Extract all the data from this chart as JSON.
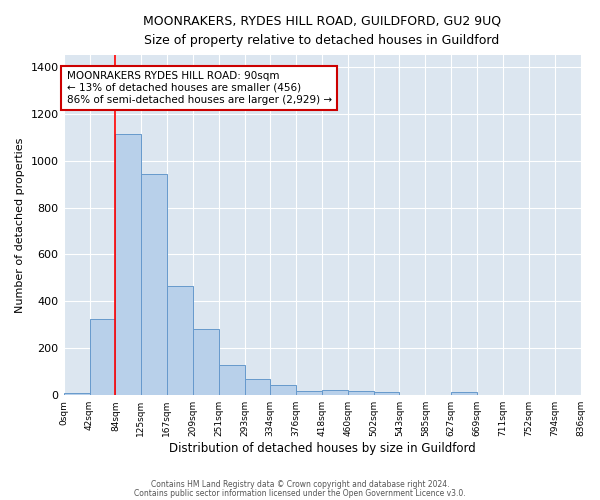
{
  "title": "MOONRAKERS, RYDES HILL ROAD, GUILDFORD, GU2 9UQ",
  "subtitle": "Size of property relative to detached houses in Guildford",
  "xlabel": "Distribution of detached houses by size in Guildford",
  "ylabel": "Number of detached properties",
  "bar_color": "#b8d0ea",
  "bar_edge_color": "#6699cc",
  "plot_bg_color": "#dce6f0",
  "fig_bg_color": "#ffffff",
  "grid_color": "#ffffff",
  "bin_edges": [
    0,
    42,
    84,
    125,
    167,
    209,
    251,
    293,
    334,
    376,
    418,
    460,
    502,
    543,
    585,
    627,
    669,
    711,
    752,
    794,
    836
  ],
  "bin_labels": [
    "0sqm",
    "42sqm",
    "84sqm",
    "125sqm",
    "167sqm",
    "209sqm",
    "251sqm",
    "293sqm",
    "334sqm",
    "376sqm",
    "418sqm",
    "460sqm",
    "502sqm",
    "543sqm",
    "585sqm",
    "627sqm",
    "669sqm",
    "711sqm",
    "752sqm",
    "794sqm",
    "836sqm"
  ],
  "bar_heights": [
    10,
    325,
    1112,
    943,
    467,
    282,
    128,
    70,
    42,
    20,
    22,
    20,
    15,
    0,
    0,
    15,
    0,
    0,
    0,
    0
  ],
  "ylim": [
    0,
    1450
  ],
  "yticks": [
    0,
    200,
    400,
    600,
    800,
    1000,
    1200,
    1400
  ],
  "red_line_x": 84,
  "annotation_text": "MOONRAKERS RYDES HILL ROAD: 90sqm\n← 13% of detached houses are smaller (456)\n86% of semi-detached houses are larger (2,929) →",
  "annotation_box_color": "#ffffff",
  "annotation_border_color": "#cc0000",
  "footer_line1": "Contains HM Land Registry data © Crown copyright and database right 2024.",
  "footer_line2": "Contains public sector information licensed under the Open Government Licence v3.0."
}
